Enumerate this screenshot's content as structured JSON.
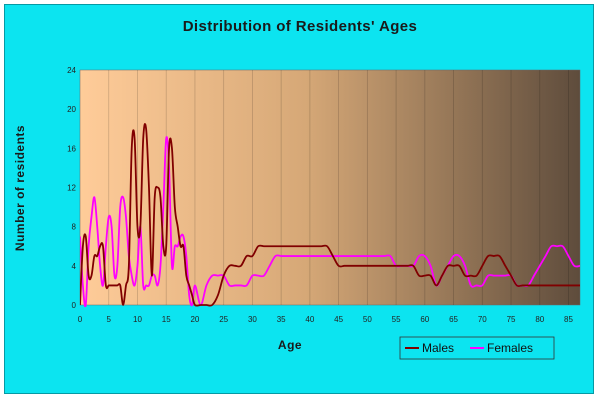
{
  "chart_data": {
    "type": "line",
    "title": "Distribution of Residents' Ages",
    "xlabel": "Age",
    "ylabel": "Number of residents",
    "xlim": [
      0,
      87
    ],
    "ylim": [
      0,
      24
    ],
    "x_ticks": [
      0,
      5,
      10,
      15,
      20,
      25,
      30,
      35,
      40,
      45,
      50,
      55,
      60,
      65,
      70,
      75,
      80,
      85
    ],
    "y_ticks": [
      0,
      4,
      8,
      12,
      16,
      20,
      24
    ],
    "grid": "vertical",
    "legend_position": "bottom-right",
    "colors": {
      "background": "#0ce4f0",
      "plot_gradient_start": "#ffcc99",
      "plot_gradient_end": "#5e4c3c",
      "males": "#800000",
      "females": "#ff00ff"
    },
    "series": [
      {
        "name": "Males",
        "color": "#800000",
        "x": [
          0,
          0.5,
          1,
          1.5,
          2,
          2.5,
          3,
          3.5,
          4,
          4.5,
          5,
          5.5,
          6,
          6.5,
          7,
          7.5,
          8,
          8.5,
          9,
          9.5,
          10,
          10.5,
          11,
          11.5,
          12,
          12.5,
          13,
          13.5,
          14,
          14.5,
          15,
          15.5,
          16,
          16.5,
          17,
          17.5,
          18,
          18.5,
          19,
          19.5,
          20,
          21,
          22,
          23,
          24,
          25,
          26,
          27,
          28,
          29,
          30,
          31,
          32,
          33,
          34,
          35,
          36,
          37,
          38,
          39,
          40,
          41,
          42,
          43,
          44,
          45,
          46,
          47,
          48,
          49,
          50,
          51,
          52,
          53,
          54,
          55,
          56,
          57,
          58,
          59,
          60,
          61,
          62,
          63,
          64,
          65,
          66,
          67,
          68,
          69,
          70,
          71,
          72,
          73,
          74,
          75,
          76,
          77,
          78,
          79,
          80,
          81,
          82,
          83,
          84,
          85,
          86,
          87
        ],
        "values": [
          0,
          6,
          7,
          3,
          3,
          5,
          5,
          6,
          6,
          2,
          2,
          2,
          2,
          2,
          2,
          0,
          2,
          4,
          16,
          17,
          8,
          8,
          17,
          18,
          12,
          3,
          11,
          12,
          11,
          6,
          6,
          16,
          16,
          10,
          8,
          6,
          6,
          3,
          2,
          1,
          0,
          0,
          0,
          0,
          1,
          3,
          4,
          4,
          4,
          5,
          5,
          6,
          6,
          6,
          6,
          6,
          6,
          6,
          6,
          6,
          6,
          6,
          6,
          6,
          5,
          4,
          4,
          4,
          4,
          4,
          4,
          4,
          4,
          4,
          4,
          4,
          4,
          4,
          4,
          3,
          3,
          3,
          2,
          3,
          4,
          4,
          4,
          3,
          3,
          3,
          4,
          5,
          5,
          5,
          4,
          3,
          2,
          2,
          2,
          2,
          2,
          2,
          2,
          2,
          2,
          2,
          2,
          2
        ]
      },
      {
        "name": "Females",
        "color": "#ff00ff",
        "x": [
          0,
          0.5,
          1,
          1.5,
          2,
          2.5,
          3,
          3.5,
          4,
          4.5,
          5,
          5.5,
          6,
          6.5,
          7,
          7.5,
          8,
          8.5,
          9,
          9.5,
          10,
          10.5,
          11,
          11.5,
          12,
          12.5,
          13,
          13.5,
          14,
          14.5,
          15,
          15.5,
          16,
          16.5,
          17,
          17.5,
          18,
          18.5,
          19,
          19.5,
          20,
          21,
          22,
          23,
          24,
          25,
          26,
          27,
          28,
          29,
          30,
          31,
          32,
          33,
          34,
          35,
          36,
          37,
          38,
          39,
          40,
          41,
          42,
          43,
          44,
          45,
          46,
          47,
          48,
          49,
          50,
          51,
          52,
          53,
          54,
          55,
          56,
          57,
          58,
          59,
          60,
          61,
          62,
          63,
          64,
          65,
          66,
          67,
          68,
          69,
          70,
          71,
          72,
          73,
          74,
          75,
          76,
          77,
          78,
          79,
          80,
          81,
          82,
          83,
          84,
          85,
          86,
          87
        ],
        "values": [
          7,
          2,
          0,
          6,
          9,
          11,
          8,
          4,
          2,
          6,
          9,
          8,
          3,
          4,
          10,
          11,
          9,
          5,
          3,
          2,
          4,
          8,
          2,
          2,
          2,
          3,
          3,
          2,
          4,
          10,
          17,
          14,
          4,
          6,
          6,
          7,
          7,
          5,
          1,
          0,
          2,
          0,
          2,
          3,
          3,
          3,
          2,
          2,
          2,
          2,
          3,
          3,
          3,
          4,
          5,
          5,
          5,
          5,
          5,
          5,
          5,
          5,
          5,
          5,
          5,
          5,
          5,
          5,
          5,
          5,
          5,
          5,
          5,
          5,
          5,
          4,
          4,
          4,
          4,
          5,
          5,
          4,
          2,
          3,
          4,
          5,
          5,
          4,
          2,
          2,
          2,
          3,
          3,
          3,
          3,
          3,
          2,
          2,
          2,
          3,
          4,
          5,
          6,
          6,
          6,
          5,
          4,
          4
        ]
      }
    ]
  }
}
